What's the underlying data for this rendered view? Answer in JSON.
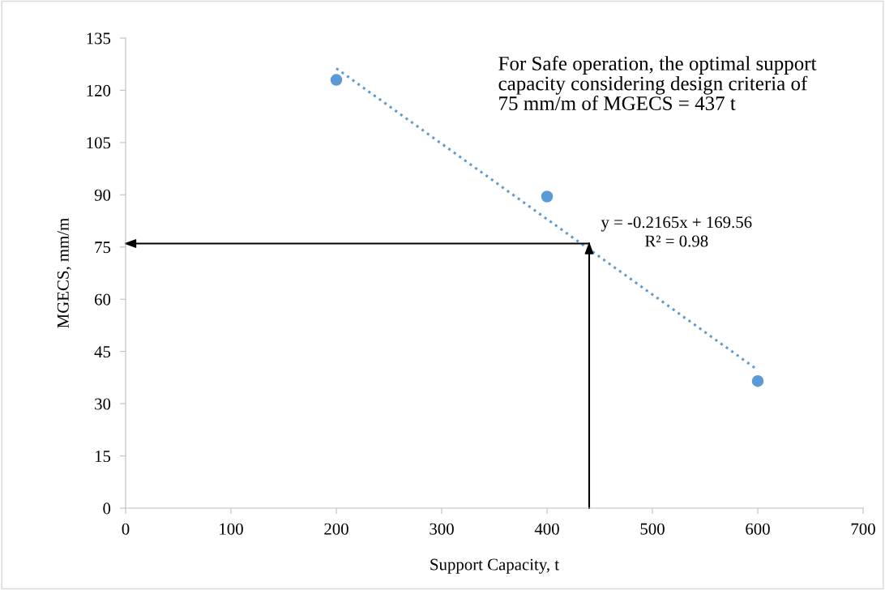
{
  "chart_data": {
    "type": "scatter",
    "xlabel": "Support Capacity, t",
    "ylabel": "MGECS, mm/m",
    "x": [
      200,
      400,
      600
    ],
    "series": [
      {
        "color": "#5b9bd5",
        "values": [
          123,
          89.5,
          36.5
        ],
        "marker": "circle"
      },
      {
        "type": "line",
        "color": "#5b9bd5",
        "x": [
          200,
          600
        ],
        "values": [
          126.3,
          39.7
        ],
        "line_style": "dotted",
        "marker": "none"
      },
      {
        "type": "line",
        "color": "#000000",
        "x": [
          440,
          0
        ],
        "values": [
          76,
          76
        ],
        "line_style": "solid",
        "marker": "none"
      },
      {
        "type": "line",
        "color": "#000000",
        "x": [
          440,
          440
        ],
        "values": [
          0,
          76
        ],
        "line_style": "solid",
        "marker": "none"
      }
    ],
    "xlim": [
      0,
      700
    ],
    "xticks": [
      0,
      100,
      200,
      300,
      400,
      500,
      600,
      700
    ],
    "ylim": [
      0,
      135
    ],
    "yticks": [
      0,
      15,
      30,
      45,
      60,
      75,
      90,
      105,
      120,
      135
    ],
    "grid": false,
    "legend": false,
    "annotations": [
      "For Safe operation, the optimal support\ncapacity considering design criteria of\n75 mm/m of MGECS = 437 t",
      "y = -0.2165x + 169.56\nR² = 0.98"
    ]
  }
}
